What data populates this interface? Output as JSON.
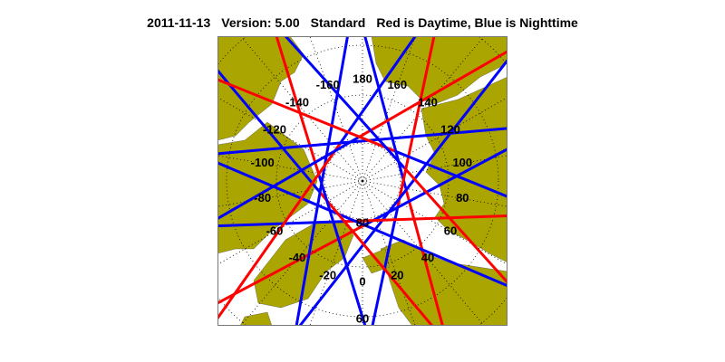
{
  "title": {
    "date": "2011-11-13",
    "version": "Version: 5.00",
    "mode": "Standard",
    "legend_text": "Red is Daytime, Blue is Nighttime"
  },
  "map": {
    "projection": "north polar stereographic",
    "colors": {
      "land": "#aaa500",
      "ocean": "#ffffff",
      "day_track": "#ff0000",
      "night_track": "#0000ff",
      "grid": "#000000"
    },
    "longitude_labels": [
      "180",
      "160",
      "140",
      "120",
      "100",
      "80",
      "60",
      "40",
      "20",
      "0",
      "-20",
      "-40",
      "-60",
      "-80",
      "-100",
      "-120",
      "-140",
      "-160"
    ],
    "latitude_labels": [
      "80",
      "60"
    ]
  }
}
